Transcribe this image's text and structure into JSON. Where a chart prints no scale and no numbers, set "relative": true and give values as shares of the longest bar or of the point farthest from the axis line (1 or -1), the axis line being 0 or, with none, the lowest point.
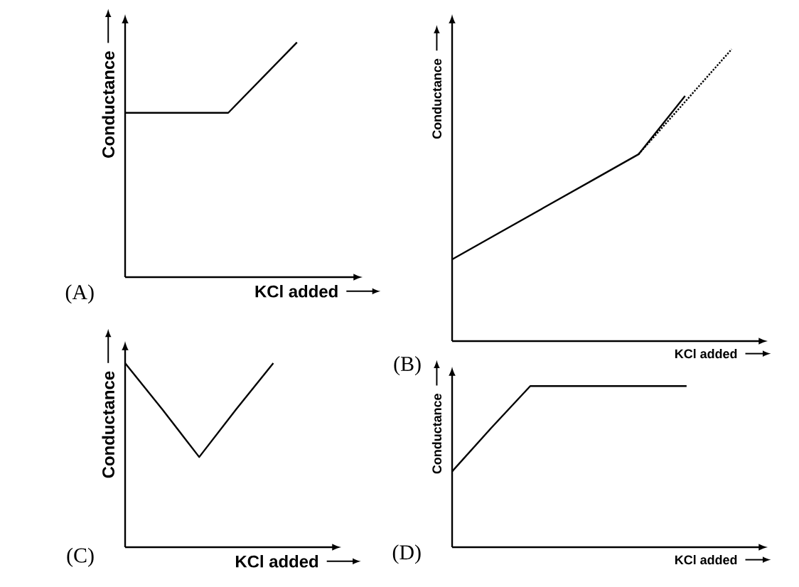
{
  "chart_data": [
    {
      "type": "line",
      "xlabel": "KCl added",
      "ylabel": "Conductance",
      "annotations": [
        "(A)"
      ],
      "relative": true,
      "categories": [
        null,
        null,
        null,
        null,
        null,
        null
      ],
      "series": [
        {
          "color": "#000000",
          "line_style": "solid",
          "values": [
            0.7,
            0.7,
            0.7,
            0.7,
            0.85,
            1.0
          ]
        }
      ]
    },
    {
      "type": "line",
      "xlabel": "KCl added",
      "ylabel": "Conductance",
      "annotations": [
        "(B)"
      ],
      "relative": true,
      "categories": [
        null,
        null,
        null,
        null,
        null,
        null,
        null
      ],
      "series": [
        {
          "color": "#000000",
          "line_style": "solid",
          "values": [
            0.28,
            0.37,
            0.46,
            0.55,
            0.64,
            0.84,
            null
          ]
        },
        {
          "color": "#000000",
          "line_style": "dotted",
          "values": [
            null,
            null,
            null,
            null,
            0.64,
            0.82,
            1.0
          ]
        }
      ]
    },
    {
      "type": "line",
      "xlabel": "KCl added",
      "ylabel": "Conductance",
      "annotations": [
        "(C)"
      ],
      "relative": true,
      "categories": [
        null,
        null,
        null,
        null,
        null
      ],
      "series": [
        {
          "color": "#000000",
          "line_style": "solid",
          "values": [
            1.0,
            0.75,
            0.49,
            0.75,
            1.0
          ]
        }
      ]
    },
    {
      "type": "line",
      "xlabel": "KCl added",
      "ylabel": "Conductance",
      "annotations": [
        "(D)"
      ],
      "relative": true,
      "categories": [
        null,
        null,
        null,
        null,
        null,
        null,
        null
      ],
      "series": [
        {
          "color": "#000000",
          "line_style": "solid",
          "values": [
            0.47,
            0.74,
            1.0,
            1.0,
            1.0,
            1.0,
            1.0
          ]
        }
      ]
    }
  ]
}
